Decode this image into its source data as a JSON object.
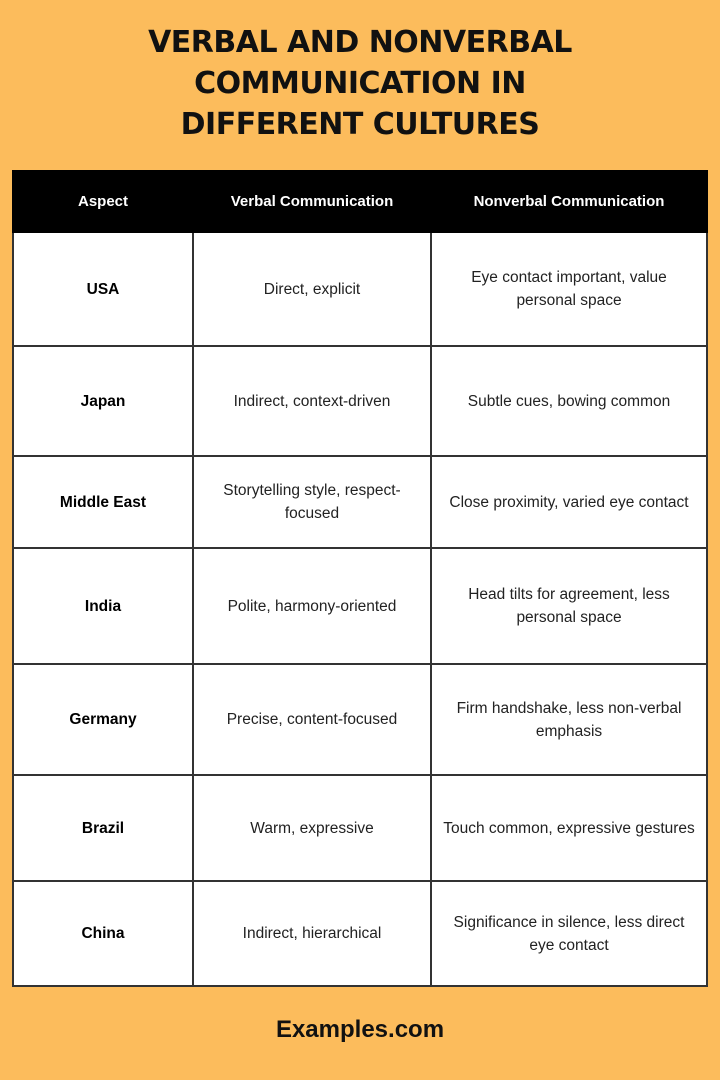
{
  "title": {
    "lines": [
      "Verbal and Nonverbal",
      "Communication in",
      "Different Cultures"
    ]
  },
  "table": {
    "headers": [
      "Aspect",
      "Verbal Communication",
      "Nonverbal Communication"
    ],
    "rows": [
      [
        "USA",
        "Direct, explicit",
        "Eye contact important, value personal space"
      ],
      [
        "Japan",
        "Indirect, context-driven",
        "Subtle cues, bowing common"
      ],
      [
        "Middle East",
        "Storytelling style, respect-focused",
        "Close proximity, varied eye contact"
      ],
      [
        "India",
        "Polite, harmony-oriented",
        "Head tilts for agreement, less personal space"
      ],
      [
        "Germany",
        "Precise, content-focused",
        "Firm handshake, less non-verbal emphasis"
      ],
      [
        "Brazil",
        "Warm, expressive",
        "Touch common, expressive gestures"
      ],
      [
        "China",
        "Indirect, hierarchical",
        "Significance in silence, less direct eye contact"
      ]
    ]
  },
  "footer": {
    "brand": "Examples.com"
  },
  "colors": {
    "background": "#fcbc5c",
    "header": "#000000"
  }
}
